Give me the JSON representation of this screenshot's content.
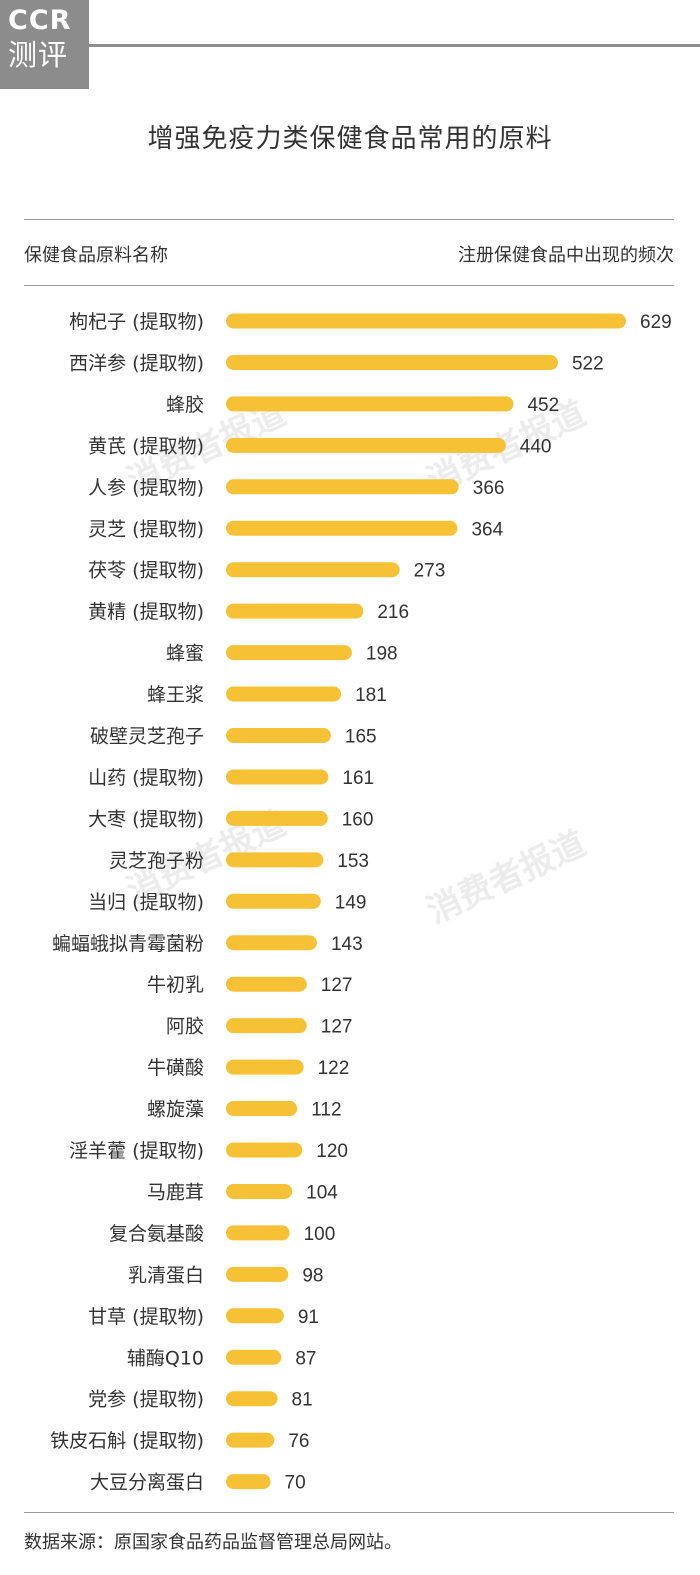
{
  "logo": {
    "line1": "CCR",
    "line2": "测评"
  },
  "header": {
    "title": "增强免疫力类保健食品常用的原料",
    "left_column": "保健食品原料名称",
    "right_column": "注册保健食品中出现的频次"
  },
  "watermark": [
    "消费者报道",
    "消费者报道",
    "消费者报道",
    "消费者报道"
  ],
  "footer": {
    "source": "数据来源：原国家食品药品监督管理总局网站。"
  },
  "colors": {
    "bar": "#F7C135",
    "text": "#333333",
    "rule": "#9A9A9A",
    "logo_bg": "#8C8C8C"
  },
  "chart_data": {
    "type": "bar",
    "orientation": "horizontal",
    "title": "增强免疫力类保健食品常用的原料",
    "categories": [
      "枸杞子 (提取物)",
      "西洋参 (提取物)",
      "蜂胶",
      "黄芪 (提取物)",
      "人参 (提取物)",
      "灵芝 (提取物)",
      "茯苓 (提取物)",
      "黄精 (提取物)",
      "蜂蜜",
      "蜂王浆",
      "破壁灵芝孢子",
      "山药 (提取物)",
      "大枣 (提取物)",
      "灵芝孢子粉",
      "当归 (提取物)",
      "蝙蝠蛾拟青霉菌粉",
      "牛初乳",
      "阿胶",
      "牛磺酸",
      "螺旋藻",
      "淫羊藿 (提取物)",
      "马鹿茸",
      "复合氨基酸",
      "乳清蛋白",
      "甘草 (提取物)",
      "辅酶Q10",
      "党参 (提取物)",
      "铁皮石斛 (提取物)",
      "大豆分离蛋白"
    ],
    "values": [
      629,
      522,
      452,
      440,
      366,
      364,
      273,
      216,
      198,
      181,
      165,
      161,
      160,
      153,
      149,
      143,
      127,
      127,
      122,
      112,
      120,
      104,
      100,
      98,
      91,
      87,
      81,
      76,
      70
    ],
    "xlabel": "注册保健食品中出现的频次",
    "ylabel": "保健食品原料名称",
    "xlim": [
      0,
      629
    ],
    "grid": false,
    "data_labels": true
  }
}
